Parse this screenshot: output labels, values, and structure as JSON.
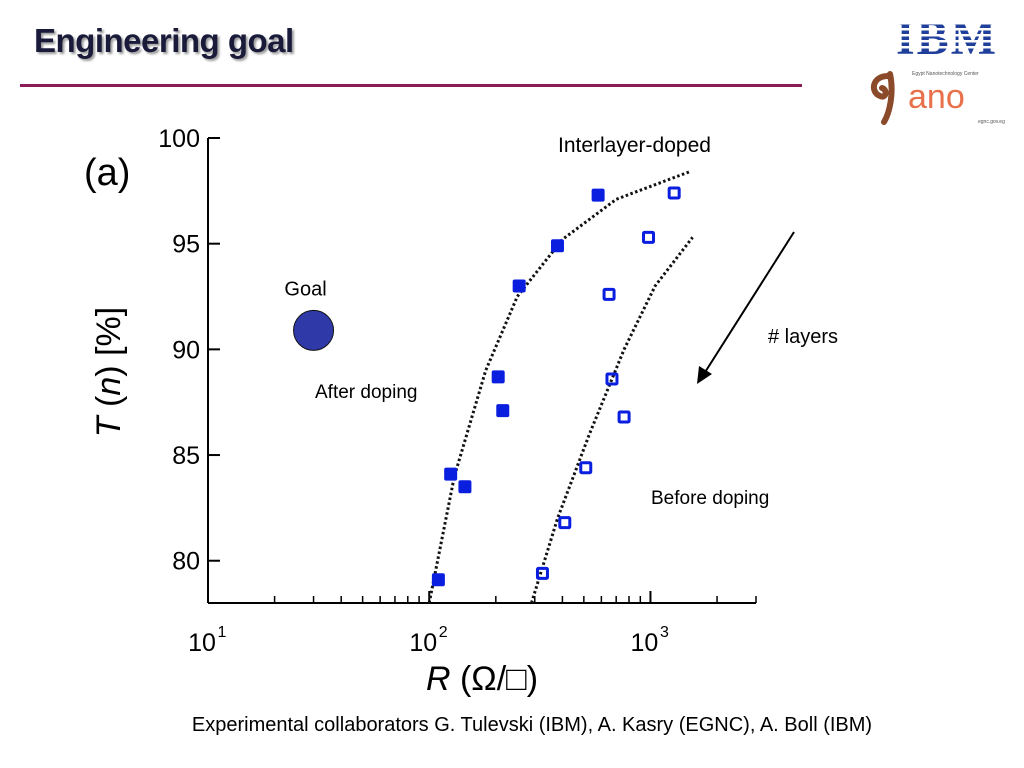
{
  "slide": {
    "title": "Engineering goal",
    "footer": "Experimental collaborators G. Tulevski (IBM), A. Kasry (EGNC), A. Boll (IBM)"
  },
  "logos": {
    "ibm": "IBM",
    "nano_text": "ano",
    "nano_subtitle": "Egypt Nanotechnology Center",
    "nano_url": "egnc.gov.eg"
  },
  "colors": {
    "title_rule": "#8b1c5a",
    "ibm_blue": "#1f3f9a",
    "nano_brown": "#8b4a2a",
    "nano_orange": "#e8704a",
    "marker_blue": "#0a1ee0",
    "goal_fill": "#2f3aa8"
  },
  "chart_data": {
    "type": "scatter",
    "panel_label": "(a)",
    "xscale": "log",
    "xlim": [
      10,
      3000
    ],
    "ylim": [
      78,
      100
    ],
    "x_tick_labels": [
      {
        "value": 10,
        "base": "10",
        "exp": "1"
      },
      {
        "value": 100,
        "base": "10",
        "exp": "2"
      },
      {
        "value": 1000,
        "base": "10",
        "exp": "3"
      }
    ],
    "y_ticks": [
      80,
      85,
      90,
      95,
      100
    ],
    "xlabel": {
      "var": "R",
      "unit": "(Ω/□)"
    },
    "ylabel": {
      "var": "T",
      "arg": "n",
      "unit": "[%]"
    },
    "series": [
      {
        "name": "After doping",
        "marker": "filled-square",
        "points": [
          [
            110,
            79.1
          ],
          [
            125,
            84.1
          ],
          [
            145,
            83.5
          ],
          [
            205,
            88.7
          ],
          [
            215,
            87.1
          ],
          [
            255,
            93.0
          ],
          [
            380,
            94.9
          ],
          [
            580,
            97.3
          ]
        ]
      },
      {
        "name": "Before doping",
        "marker": "open-square",
        "points": [
          [
            325,
            79.4
          ],
          [
            410,
            81.8
          ],
          [
            510,
            84.4
          ],
          [
            650,
            92.6
          ],
          [
            670,
            88.6
          ],
          [
            760,
            86.8
          ],
          [
            980,
            95.3
          ],
          [
            1280,
            97.4
          ]
        ]
      }
    ],
    "curves": [
      {
        "name": "Interlayer-doped",
        "points": [
          [
            100,
            78
          ],
          [
            130,
            84
          ],
          [
            180,
            89
          ],
          [
            250,
            92.5
          ],
          [
            400,
            95.2
          ],
          [
            700,
            97.1
          ],
          [
            1500,
            98.4
          ]
        ]
      },
      {
        "name": "",
        "points": [
          [
            290,
            78
          ],
          [
            380,
            82
          ],
          [
            530,
            86
          ],
          [
            760,
            90
          ],
          [
            1050,
            93
          ],
          [
            1550,
            95.3
          ]
        ]
      }
    ],
    "goal": {
      "label": "Goal",
      "x": 30,
      "y": 90.9
    },
    "annotations": [
      {
        "text": "Interlayer-doped"
      },
      {
        "text": "After doping"
      },
      {
        "text": "Before doping"
      },
      {
        "text": "# layers"
      }
    ]
  }
}
